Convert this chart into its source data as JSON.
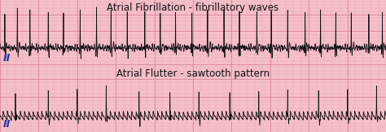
{
  "title1": "Atrial Fibrillation - fibrillatory waves",
  "title2": "Atrial Flutter - sawtooth pattern",
  "label": "II",
  "bg_color": "#f5c0c8",
  "grid_major_color": "#d9889a",
  "grid_minor_color": "#e8aab5",
  "line_color": "#111111",
  "fig_bg": "#f5c0c8",
  "title_fontsize": 8.5,
  "label_fontsize": 9,
  "label_color": "#2233aa"
}
